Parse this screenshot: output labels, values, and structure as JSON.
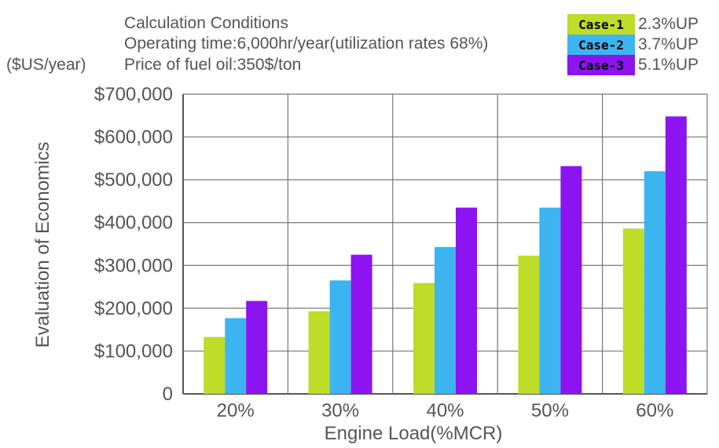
{
  "chart_data": {
    "type": "bar",
    "conditions": [
      "Calculation Conditions",
      "Operating time:6,000hr/year(utilization rates 68%)",
      "Price of fuel oil:350$/ton"
    ],
    "unit_label": "($US/year)",
    "ylabel": "Evaluation of Economics",
    "xlabel": "Engine Load(%MCR)",
    "categories": [
      "20%",
      "30%",
      "40%",
      "50%",
      "60%"
    ],
    "ylim": [
      0,
      700000
    ],
    "yticks": [
      0,
      100000,
      200000,
      300000,
      400000,
      500000,
      600000,
      700000
    ],
    "ytick_labels": [
      "0",
      "$100,000",
      "$200,000",
      "$300,000",
      "$400,000",
      "$500,000",
      "$600,000",
      "$700,000"
    ],
    "grid": true,
    "legend_position": "top-right",
    "series": [
      {
        "name": "Case-1",
        "note": "2.3%UP",
        "color": "#bedc28",
        "tag_text_color": "#000000",
        "values": [
          133000,
          193000,
          259000,
          323000,
          386000
        ]
      },
      {
        "name": "Case-2",
        "note": "3.7%UP",
        "color": "#3cb4f0",
        "tag_text_color": "#000000",
        "values": [
          177000,
          265000,
          343000,
          435000,
          520000
        ]
      },
      {
        "name": "Case-3",
        "note": "5.1%UP",
        "color": "#8c14f0",
        "tag_text_color": "#000000",
        "values": [
          217000,
          325000,
          435000,
          532000,
          648000
        ]
      }
    ]
  }
}
